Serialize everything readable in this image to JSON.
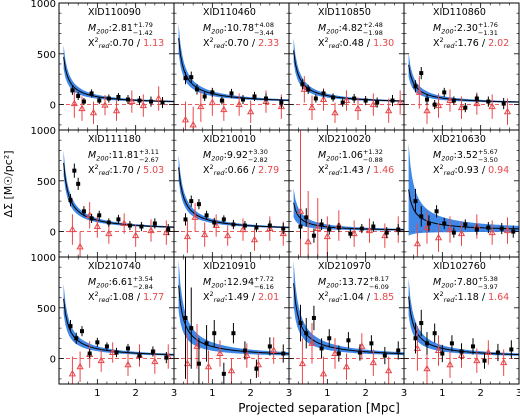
{
  "figure": {
    "xlabel": "Projected separation [Mpc]",
    "ylabel": "ΔΣ [M☉/pc²]",
    "x_ticks": [
      "1",
      "2",
      "3"
    ],
    "y_ticks": [
      "0",
      "500",
      "1000"
    ],
    "colors": {
      "black_points": "#000000",
      "red_points": "#e8474a",
      "band": "#2a7be4",
      "fit_line": "#000000",
      "ref_line": "#e8474a",
      "chi_red": "#e8474a"
    }
  },
  "chart_data": [
    {
      "type": "scatter",
      "id": "XID110090",
      "mass": "2.81",
      "mass_up": "+1.79",
      "mass_lo": "−1.42",
      "chi_black": "0.70",
      "chi_red": "1.13",
      "amp": 215,
      "band": 0.25,
      "black": [
        [
          0.35,
          140,
          45
        ],
        [
          0.5,
          85,
          40
        ],
        [
          0.65,
          30,
          35
        ],
        [
          0.85,
          110,
          40
        ],
        [
          1.05,
          40,
          35
        ],
        [
          1.3,
          60,
          40
        ],
        [
          1.55,
          75,
          40
        ],
        [
          1.8,
          50,
          45
        ],
        [
          2.1,
          40,
          45
        ],
        [
          2.4,
          30,
          50
        ],
        [
          2.7,
          20,
          55
        ]
      ],
      "red": [
        [
          0.4,
          10,
          140
        ],
        [
          0.6,
          -40,
          120
        ],
        [
          0.9,
          -80,
          110
        ],
        [
          1.2,
          -5,
          100
        ],
        [
          1.5,
          -60,
          100
        ],
        [
          1.9,
          30,
          110
        ],
        [
          2.2,
          -10,
          110
        ],
        [
          2.6,
          60,
          120
        ]
      ]
    },
    {
      "type": "scatter",
      "id": "XID110460",
      "mass": "10.78",
      "mass_up": "+4.08",
      "mass_lo": "−3.44",
      "chi_black": "0.70",
      "chi_red": "2.33",
      "amp": 300,
      "band": 0.22,
      "black": [
        [
          0.3,
          260,
          60
        ],
        [
          0.45,
          270,
          55
        ],
        [
          0.6,
          150,
          50
        ],
        [
          0.8,
          80,
          45
        ],
        [
          1.0,
          120,
          45
        ],
        [
          1.25,
          40,
          40
        ],
        [
          1.5,
          110,
          45
        ],
        [
          1.8,
          50,
          45
        ],
        [
          2.1,
          80,
          45
        ],
        [
          2.4,
          60,
          50
        ],
        [
          2.8,
          20,
          55
        ]
      ],
      "red": [
        [
          0.3,
          -150,
          180
        ],
        [
          0.5,
          -200,
          180
        ],
        [
          0.7,
          -20,
          150
        ],
        [
          1.0,
          20,
          130
        ],
        [
          1.3,
          -50,
          110
        ],
        [
          1.7,
          0,
          110
        ],
        [
          2.0,
          -70,
          110
        ],
        [
          2.4,
          30,
          110
        ],
        [
          2.8,
          -20,
          120
        ]
      ]
    },
    {
      "type": "scatter",
      "id": "XID110850",
      "mass": "4.82",
      "mass_up": "+2.48",
      "mass_lo": "−1.98",
      "chi_black": "0.48",
      "chi_red": "1.30",
      "amp": 245,
      "band": 0.22,
      "black": [
        [
          0.35,
          200,
          50
        ],
        [
          0.5,
          150,
          45
        ],
        [
          0.7,
          60,
          40
        ],
        [
          0.9,
          110,
          40
        ],
        [
          1.15,
          70,
          40
        ],
        [
          1.4,
          20,
          40
        ],
        [
          1.7,
          60,
          45
        ],
        [
          2.0,
          40,
          45
        ],
        [
          2.3,
          20,
          50
        ],
        [
          2.7,
          40,
          55
        ]
      ],
      "red": [
        [
          0.4,
          150,
          130
        ],
        [
          0.6,
          -30,
          120
        ],
        [
          0.9,
          50,
          110
        ],
        [
          1.2,
          -80,
          100
        ],
        [
          1.5,
          40,
          100
        ],
        [
          1.8,
          -40,
          110
        ],
        [
          2.2,
          0,
          110
        ],
        [
          2.6,
          -60,
          120
        ],
        [
          2.9,
          20,
          120
        ]
      ]
    },
    {
      "type": "scatter",
      "id": "XID110860",
      "mass": "2.30",
      "mass_up": "+1.76",
      "mass_lo": "−1.31",
      "chi_black": "1.76",
      "chi_red": "2.02",
      "amp": 180,
      "band": 0.3,
      "black": [
        [
          0.3,
          180,
          60
        ],
        [
          0.45,
          310,
          60
        ],
        [
          0.6,
          50,
          50
        ],
        [
          0.8,
          0,
          45
        ],
        [
          1.05,
          120,
          45
        ],
        [
          1.3,
          40,
          40
        ],
        [
          1.6,
          -30,
          45
        ],
        [
          1.9,
          60,
          45
        ],
        [
          2.2,
          30,
          50
        ],
        [
          2.6,
          10,
          55
        ]
      ],
      "red": [
        [
          0.4,
          120,
          160
        ],
        [
          0.6,
          -60,
          130
        ],
        [
          0.9,
          -10,
          120
        ],
        [
          1.2,
          40,
          110
        ],
        [
          1.5,
          -30,
          110
        ],
        [
          1.9,
          10,
          110
        ],
        [
          2.3,
          -20,
          120
        ],
        [
          2.7,
          -70,
          130
        ]
      ]
    },
    {
      "type": "scatter",
      "id": "XID111180",
      "mass": "11.81",
      "mass_up": "+3.11",
      "mass_lo": "−2.67",
      "chi_black": "1.70",
      "chi_red": "5.03",
      "amp": 310,
      "band": 0.18,
      "black": [
        [
          0.3,
          310,
          60
        ],
        [
          0.4,
          600,
          70
        ],
        [
          0.5,
          470,
          60
        ],
        [
          0.65,
          200,
          50
        ],
        [
          0.85,
          130,
          45
        ],
        [
          1.05,
          160,
          45
        ],
        [
          1.3,
          90,
          40
        ],
        [
          1.55,
          120,
          45
        ],
        [
          1.85,
          60,
          45
        ],
        [
          2.15,
          50,
          45
        ],
        [
          2.5,
          80,
          50
        ],
        [
          2.85,
          20,
          55
        ]
      ],
      "red": [
        [
          0.35,
          20,
          150
        ],
        [
          0.55,
          -150,
          150
        ],
        [
          0.8,
          160,
          130
        ],
        [
          1.0,
          50,
          110
        ],
        [
          1.3,
          -20,
          100
        ],
        [
          1.7,
          80,
          100
        ],
        [
          2.0,
          -40,
          110
        ],
        [
          2.4,
          10,
          110
        ],
        [
          2.8,
          -10,
          120
        ]
      ]
    },
    {
      "type": "scatter",
      "id": "XID210010",
      "mass": "9.92",
      "mass_up": "+3.30",
      "mass_lo": "−2.82",
      "chi_black": "0.66",
      "chi_red": "2.79",
      "amp": 290,
      "band": 0.2,
      "black": [
        [
          0.3,
          120,
          60
        ],
        [
          0.45,
          300,
          55
        ],
        [
          0.65,
          270,
          50
        ],
        [
          0.85,
          160,
          45
        ],
        [
          1.05,
          90,
          45
        ],
        [
          1.3,
          120,
          40
        ],
        [
          1.55,
          70,
          45
        ],
        [
          1.85,
          60,
          45
        ],
        [
          2.15,
          40,
          45
        ],
        [
          2.5,
          60,
          50
        ],
        [
          2.85,
          30,
          55
        ]
      ],
      "red": [
        [
          0.35,
          -50,
          160
        ],
        [
          0.55,
          140,
          140
        ],
        [
          0.8,
          -30,
          120
        ],
        [
          1.1,
          60,
          110
        ],
        [
          1.4,
          -40,
          100
        ],
        [
          1.8,
          20,
          110
        ],
        [
          2.1,
          -80,
          110
        ],
        [
          2.5,
          30,
          120
        ],
        [
          2.85,
          -20,
          120
        ]
      ]
    },
    {
      "type": "scatter",
      "id": "XID210020",
      "mass": "1.06",
      "mass_up": "+1.32",
      "mass_lo": "−0.88",
      "chi_black": "1.43",
      "chi_red": "1.46",
      "amp": 130,
      "band": 0.5,
      "black": [
        [
          0.3,
          50,
          120
        ],
        [
          0.45,
          140,
          90
        ],
        [
          0.65,
          -40,
          70
        ],
        [
          0.85,
          70,
          55
        ],
        [
          1.05,
          20,
          50
        ],
        [
          1.3,
          40,
          45
        ],
        [
          1.6,
          -20,
          45
        ],
        [
          1.9,
          30,
          45
        ],
        [
          2.2,
          50,
          50
        ],
        [
          2.55,
          -10,
          55
        ],
        [
          2.85,
          20,
          55
        ]
      ],
      "red": [
        [
          0.3,
          200,
          950
        ],
        [
          0.5,
          -100,
          500
        ],
        [
          0.75,
          30,
          300
        ],
        [
          1.0,
          -50,
          200
        ],
        [
          1.3,
          60,
          150
        ],
        [
          1.7,
          -20,
          130
        ],
        [
          2.1,
          10,
          120
        ],
        [
          2.5,
          -40,
          120
        ],
        [
          2.85,
          20,
          130
        ]
      ]
    },
    {
      "type": "scatter",
      "id": "XID210630",
      "mass": "3.52",
      "mass_up": "+5.67",
      "mass_lo": "−3.50",
      "chi_black": "0.93",
      "chi_red": "0.94",
      "amp": 190,
      "band": 1.1,
      "black": [
        [
          0.3,
          300,
          120
        ],
        [
          0.45,
          150,
          100
        ],
        [
          0.65,
          80,
          80
        ],
        [
          0.85,
          200,
          60
        ],
        [
          1.05,
          80,
          55
        ],
        [
          1.3,
          -10,
          50
        ],
        [
          1.6,
          70,
          50
        ],
        [
          1.9,
          20,
          50
        ],
        [
          2.2,
          40,
          55
        ],
        [
          2.55,
          30,
          55
        ],
        [
          2.85,
          0,
          60
        ]
      ],
      "red": [
        [
          0.35,
          -120,
          200
        ],
        [
          0.6,
          40,
          160
        ],
        [
          0.9,
          -60,
          140
        ],
        [
          1.2,
          20,
          130
        ],
        [
          1.5,
          -20,
          120
        ],
        [
          1.9,
          50,
          120
        ],
        [
          2.3,
          -10,
          120
        ],
        [
          2.7,
          10,
          130
        ]
      ]
    },
    {
      "type": "scatter",
      "id": "XID210740",
      "mass": "6.61",
      "mass_up": "+3.54",
      "mass_lo": "−2.84",
      "chi_black": "1.08",
      "chi_red": "1.77",
      "amp": 270,
      "band": 0.25,
      "black": [
        [
          0.3,
          320,
          60
        ],
        [
          0.45,
          200,
          55
        ],
        [
          0.6,
          270,
          50
        ],
        [
          0.8,
          50,
          45
        ],
        [
          1.0,
          160,
          45
        ],
        [
          1.25,
          120,
          40
        ],
        [
          1.5,
          60,
          45
        ],
        [
          1.8,
          100,
          45
        ],
        [
          2.1,
          30,
          45
        ],
        [
          2.45,
          70,
          50
        ],
        [
          2.8,
          10,
          55
        ]
      ],
      "red": [
        [
          0.35,
          -150,
          170
        ],
        [
          0.55,
          -80,
          150
        ],
        [
          0.8,
          40,
          130
        ],
        [
          1.1,
          -20,
          110
        ],
        [
          1.4,
          60,
          100
        ],
        [
          1.8,
          -60,
          110
        ],
        [
          2.1,
          30,
          110
        ],
        [
          2.5,
          -30,
          120
        ],
        [
          2.85,
          20,
          120
        ]
      ]
    },
    {
      "type": "scatter",
      "id": "XID210910",
      "mass": "12.94",
      "mass_up": "+7.72",
      "mass_lo": "−6.16",
      "chi_black": "1.49",
      "chi_red": "2.01",
      "amp": 330,
      "band": 0.35,
      "black": [
        [
          0.3,
          400,
          600
        ],
        [
          0.45,
          300,
          400
        ],
        [
          0.65,
          -50,
          250
        ],
        [
          0.85,
          150,
          180
        ],
        [
          1.05,
          250,
          130
        ],
        [
          1.3,
          -150,
          110
        ],
        [
          1.55,
          250,
          100
        ],
        [
          1.85,
          80,
          90
        ],
        [
          2.15,
          -100,
          90
        ],
        [
          2.5,
          120,
          90
        ],
        [
          2.85,
          50,
          90
        ]
      ],
      "red": [
        [
          0.35,
          -50,
          300
        ],
        [
          0.6,
          120,
          220
        ],
        [
          0.9,
          -80,
          160
        ],
        [
          1.2,
          50,
          130
        ],
        [
          1.5,
          -120,
          120
        ],
        [
          1.9,
          30,
          120
        ],
        [
          2.2,
          -60,
          120
        ],
        [
          2.6,
          80,
          130
        ]
      ]
    },
    {
      "type": "scatter",
      "id": "XID210970",
      "mass": "13.72",
      "mass_up": "+8.17",
      "mass_lo": "−6.09",
      "chi_black": "1.04",
      "chi_red": "1.85",
      "amp": 340,
      "band": 0.3,
      "black": [
        [
          0.3,
          350,
          180
        ],
        [
          0.45,
          250,
          150
        ],
        [
          0.65,
          400,
          120
        ],
        [
          0.85,
          100,
          100
        ],
        [
          1.05,
          200,
          90
        ],
        [
          1.3,
          50,
          80
        ],
        [
          1.55,
          180,
          80
        ],
        [
          1.85,
          60,
          80
        ],
        [
          2.15,
          150,
          80
        ],
        [
          2.5,
          30,
          85
        ],
        [
          2.85,
          80,
          90
        ]
      ],
      "red": [
        [
          0.35,
          -50,
          250
        ],
        [
          0.6,
          150,
          200
        ],
        [
          0.9,
          -150,
          170
        ],
        [
          1.2,
          50,
          150
        ],
        [
          1.5,
          -80,
          130
        ],
        [
          1.9,
          120,
          130
        ],
        [
          2.2,
          -40,
          130
        ],
        [
          2.6,
          -120,
          140
        ]
      ]
    },
    {
      "type": "scatter",
      "id": "XID102760",
      "mass": "7.80",
      "mass_up": "+5.38",
      "mass_lo": "−3.97",
      "chi_black": "1.18",
      "chi_red": "1.64",
      "amp": 280,
      "band": 0.3,
      "black": [
        [
          0.3,
          200,
          150
        ],
        [
          0.45,
          350,
          130
        ],
        [
          0.6,
          150,
          110
        ],
        [
          0.8,
          250,
          95
        ],
        [
          1.0,
          50,
          85
        ],
        [
          1.25,
          150,
          80
        ],
        [
          1.5,
          70,
          80
        ],
        [
          1.8,
          120,
          80
        ],
        [
          2.1,
          -20,
          80
        ],
        [
          2.45,
          60,
          85
        ],
        [
          2.8,
          90,
          90
        ]
      ],
      "red": [
        [
          0.35,
          100,
          220
        ],
        [
          0.6,
          -100,
          180
        ],
        [
          0.9,
          80,
          150
        ],
        [
          1.2,
          -60,
          130
        ],
        [
          1.5,
          30,
          120
        ],
        [
          1.9,
          -20,
          120
        ],
        [
          2.2,
          60,
          120
        ],
        [
          2.6,
          -40,
          130
        ]
      ]
    }
  ]
}
